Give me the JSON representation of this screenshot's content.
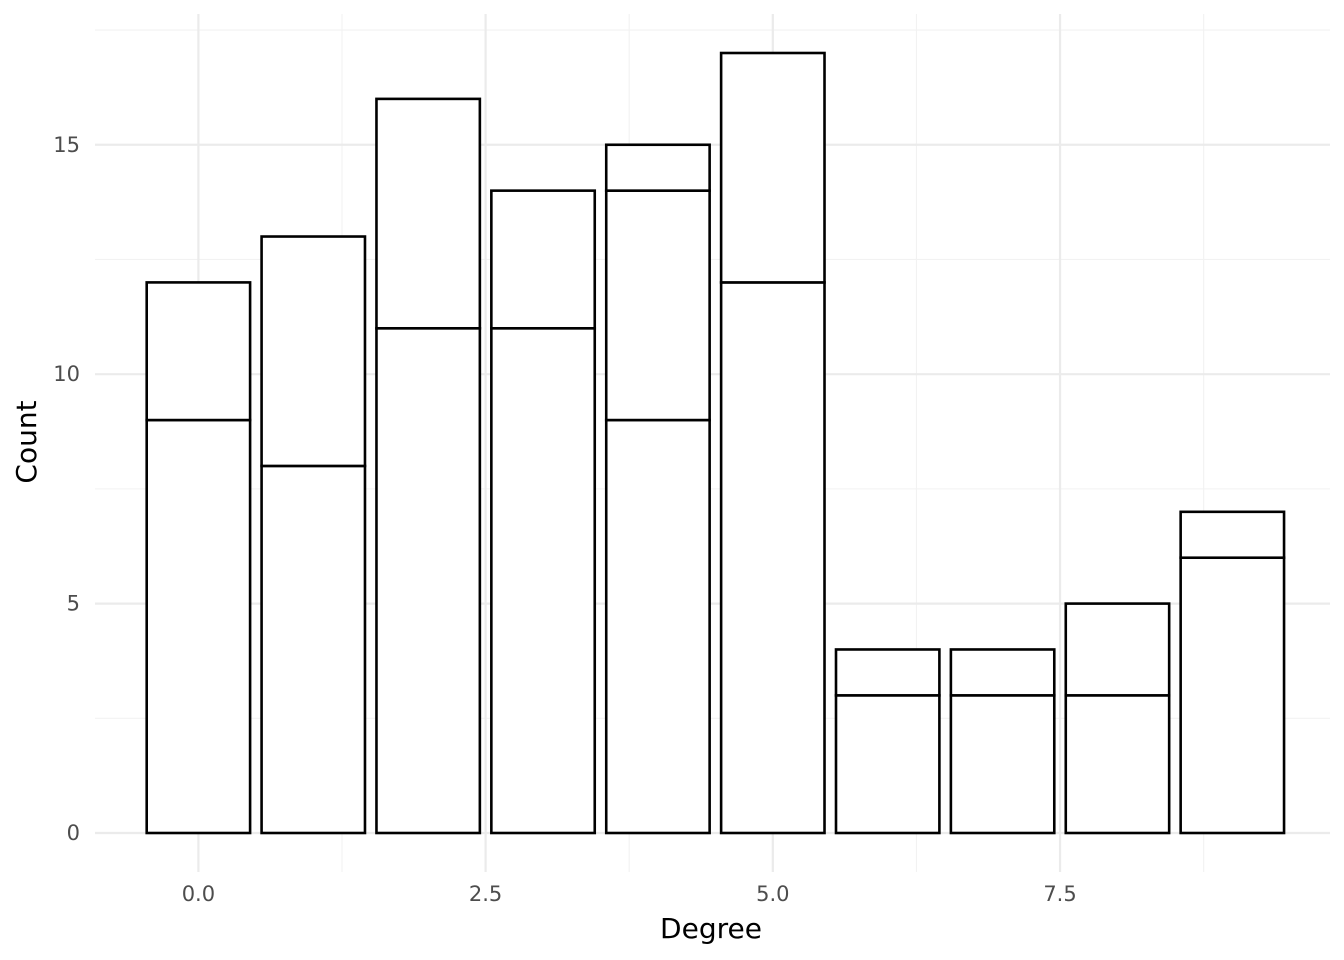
{
  "chart_data": {
    "type": "bar",
    "stacked": true,
    "title": "",
    "xlabel": "Degree",
    "ylabel": "Count",
    "x": [
      0,
      1,
      2,
      3,
      4,
      5,
      6,
      7,
      8,
      9
    ],
    "series": [
      {
        "values": [
          9,
          8,
          11,
          11,
          9,
          12,
          3,
          3,
          3,
          6
        ]
      },
      {
        "values": [
          3,
          5,
          5,
          3,
          5,
          5,
          1,
          1,
          2,
          1
        ]
      },
      {
        "values": [
          0,
          0,
          0,
          0,
          1,
          0,
          0,
          0,
          0,
          0
        ]
      }
    ],
    "totals": [
      12,
      13,
      16,
      14,
      15,
      17,
      4,
      4,
      5,
      7
    ],
    "xlim": [
      -0.9,
      9.85
    ],
    "ylim": [
      -0.85,
      17.85
    ],
    "x_ticks": [
      {
        "value": 0,
        "label": "0.0"
      },
      {
        "value": 2.5,
        "label": "2.5"
      },
      {
        "value": 5,
        "label": "5.0"
      },
      {
        "value": 7.5,
        "label": "7.5"
      }
    ],
    "x_minor_ticks": [
      1.25,
      3.75,
      6.25,
      8.75
    ],
    "y_ticks": [
      {
        "value": 0,
        "label": "0"
      },
      {
        "value": 5,
        "label": "5"
      },
      {
        "value": 10,
        "label": "10"
      },
      {
        "value": 15,
        "label": "15"
      }
    ],
    "y_minor_ticks": [
      2.5,
      7.5,
      12.5,
      17.5
    ],
    "bar_fill": "#ffffff",
    "bar_outline": "#000000",
    "grid": true,
    "legend": "none"
  }
}
